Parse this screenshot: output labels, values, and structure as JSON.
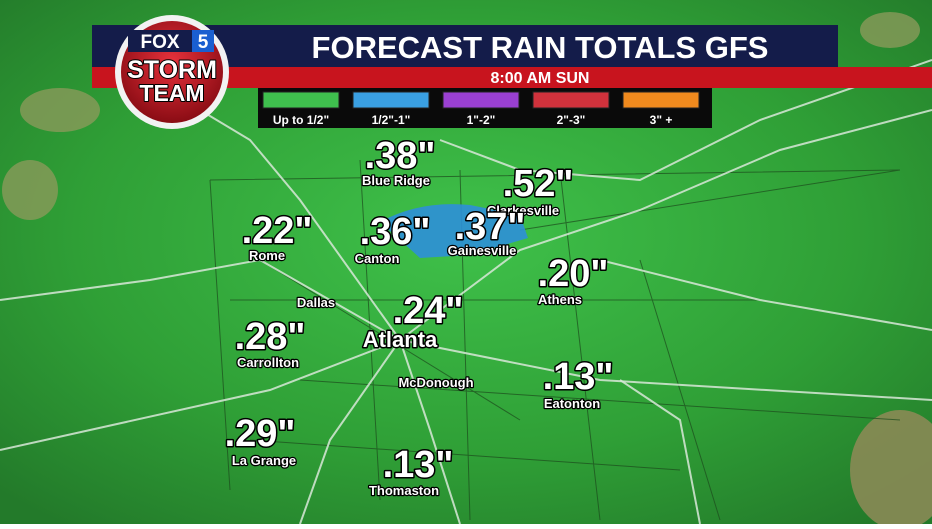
{
  "logo": {
    "brand": "FOX",
    "channel": "5",
    "line1": "STORM",
    "line2": "TEAM"
  },
  "header": {
    "title": "FORECAST RAIN TOTALS GFS",
    "subtitle": "8:00 AM SUN"
  },
  "legend": [
    {
      "label": "Up to 1/2\"",
      "color": "#3fc04e"
    },
    {
      "label": "1/2\"-1\"",
      "color": "#3aa0e2"
    },
    {
      "label": "1\"-2\"",
      "color": "#9a40d2"
    },
    {
      "label": "2\"-3\"",
      "color": "#d0323c"
    },
    {
      "label": "3\" +",
      "color": "#f08a1e"
    }
  ],
  "locations": [
    {
      "name": "Blue Ridge",
      "total": ".38\""
    },
    {
      "name": "Clarkesville",
      "total": ".52\""
    },
    {
      "name": "Rome",
      "total": ".22\""
    },
    {
      "name": "Canton",
      "total": ".36\""
    },
    {
      "name": "Gainesville",
      "total": ".37\""
    },
    {
      "name": "Athens",
      "total": ".20\""
    },
    {
      "name": "Atlanta",
      "total": ".24\""
    },
    {
      "name": "Carrollton",
      "total": ".28\""
    },
    {
      "name": "Eatonton",
      "total": ".13\""
    },
    {
      "name": "La Grange",
      "total": ".29\""
    },
    {
      "name": "Thomaston",
      "total": ".13\""
    }
  ],
  "cities": [
    "Dallas",
    "McDonough"
  ]
}
